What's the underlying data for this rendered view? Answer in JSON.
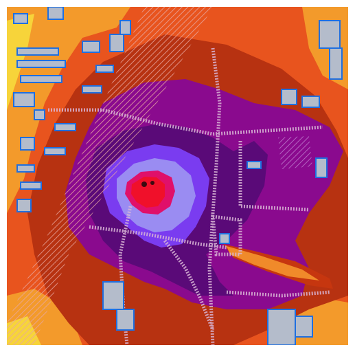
{
  "map": {
    "view": "noise-contour-map",
    "palette": {
      "background": "#ffffff",
      "zone_yellow": "#f7d43a",
      "zone_orange": "#f39a2b",
      "zone_orange_red": "#e8541e",
      "zone_red_brown": "#c6360f",
      "zone_dark_brown": "#9a2a12",
      "zone_purple": "#8a0a8e",
      "zone_dark_purple": "#5a0a78",
      "zone_violet": "#7a3cf0",
      "zone_lavender": "#9a8cf2",
      "zone_magenta": "#e0106a",
      "zone_red": "#f0102a",
      "building_fill": "#b4bccb",
      "building_outline": "#1f6fe0",
      "road_casing": "#d9b6d6"
    }
  }
}
